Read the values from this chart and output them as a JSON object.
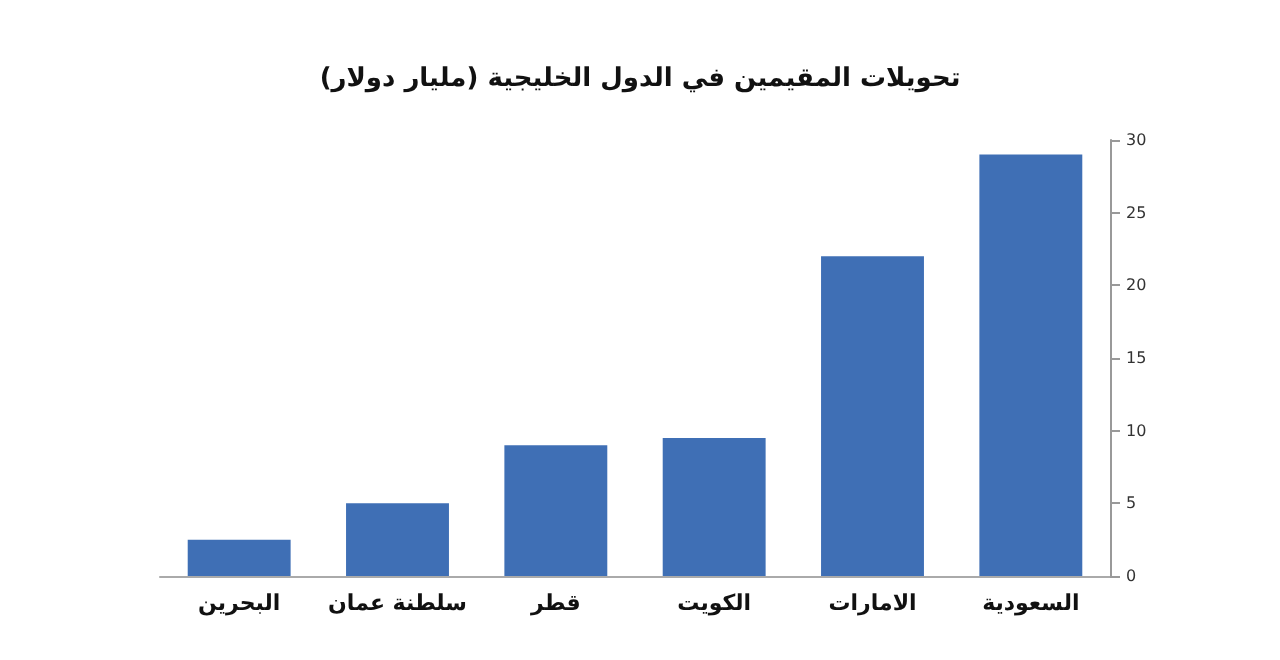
{
  "chart_data": {
    "type": "bar",
    "title": "تحويلات المقيمين في الدول الخليجية (مليار دولار)",
    "categories": [
      "البحرين",
      "سلطنة عمان",
      "قطر",
      "الكويت",
      "الامارات",
      "السعودية"
    ],
    "values": [
      2.5,
      5,
      9,
      9.5,
      22,
      29
    ],
    "color": "#3f6fb5",
    "ylim": [
      0,
      30
    ],
    "yticks": [
      0,
      5,
      10,
      15,
      20,
      25,
      30
    ],
    "grid": false
  }
}
